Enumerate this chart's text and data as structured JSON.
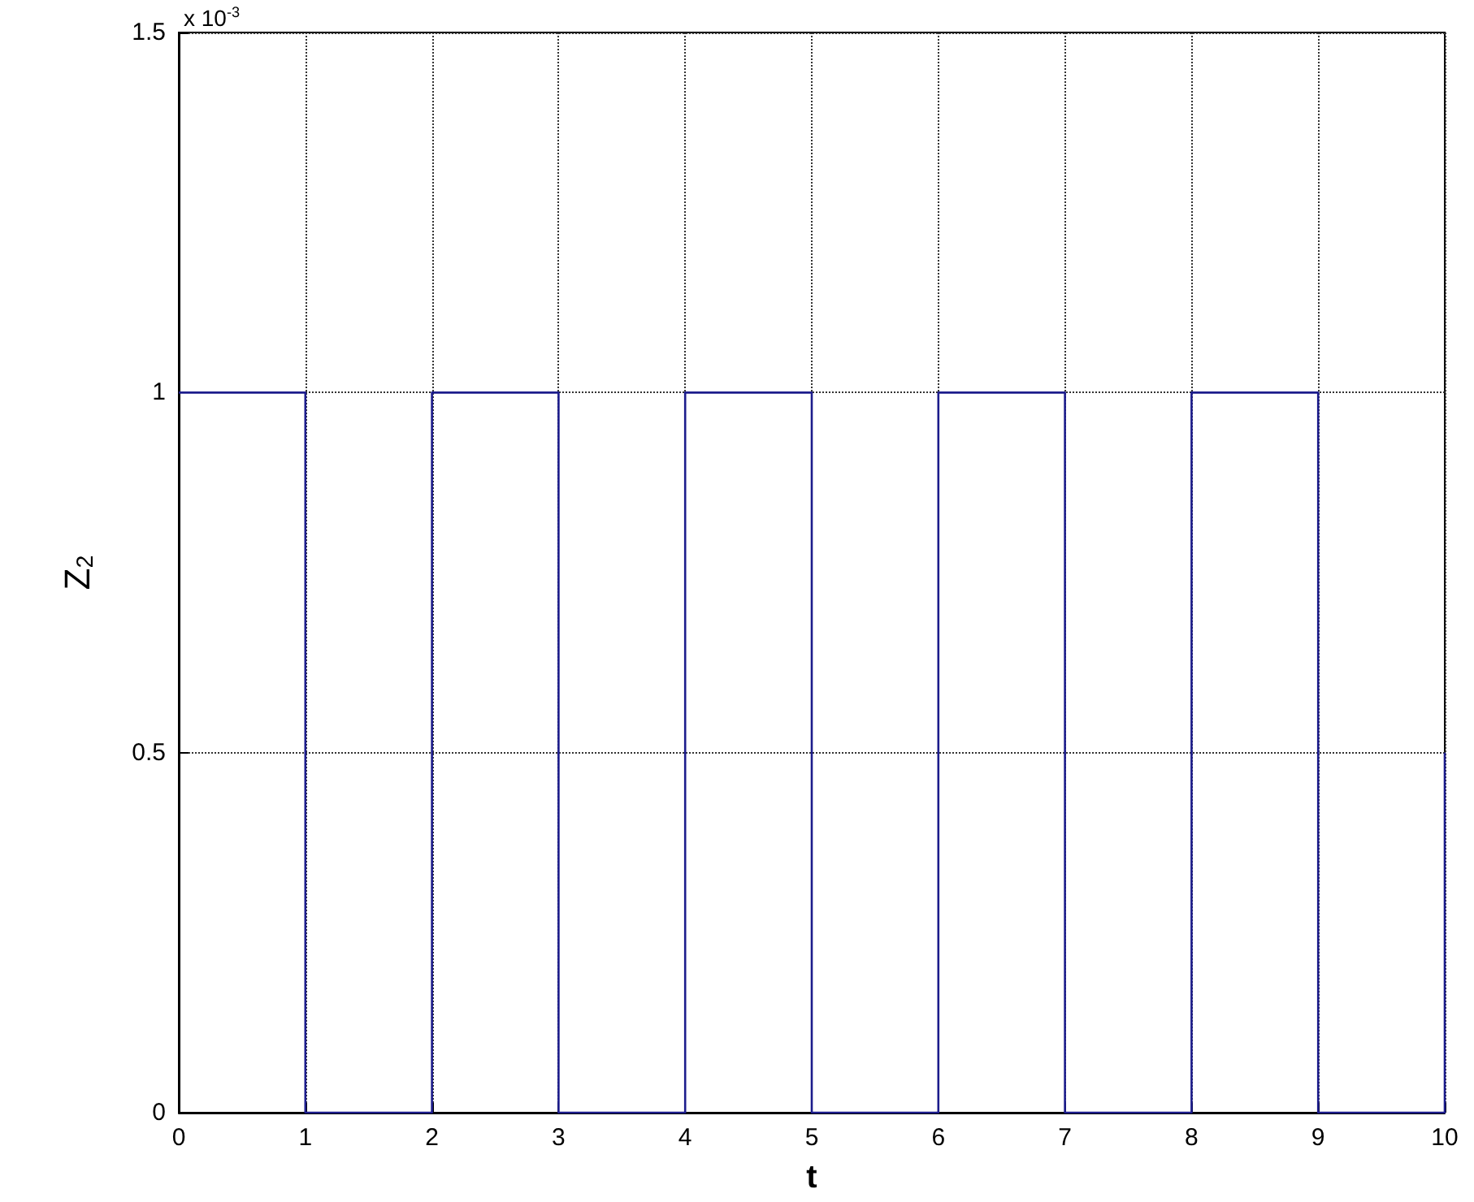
{
  "chart_data": {
    "type": "step",
    "xlabel": "t",
    "ylabel": "Z$_{2}$",
    "annotations": [
      "x 10$^{-3}$"
    ],
    "x": [
      0,
      1,
      2,
      3,
      4,
      5,
      6,
      7,
      8,
      9,
      10
    ],
    "series": [
      {
        "color": "#1c1c8c",
        "values": [
          1,
          0,
          1,
          0,
          1,
          0,
          1,
          0,
          1,
          0,
          0.5
        ]
      }
    ],
    "xlim": [
      0,
      10
    ],
    "xticks": [
      0,
      1,
      2,
      3,
      4,
      5,
      6,
      7,
      8,
      9,
      10
    ],
    "ylim": [
      0,
      1.5
    ],
    "yticks": [
      0,
      0.5,
      1,
      1.5
    ],
    "grid": true,
    "marker": "none",
    "line_style": "solid"
  }
}
